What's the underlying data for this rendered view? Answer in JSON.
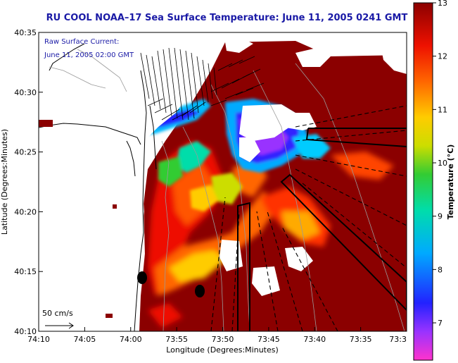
{
  "title": "RU COOL  NOAA–17  Sea Surface Temperature:  June 11, 2005 0241 GMT",
  "annotation": {
    "line1": "Raw Surface Current:",
    "line2": "June 11, 2005 02:00 GMT"
  },
  "scale": {
    "label": "50 cm/s"
  },
  "axes": {
    "xlabel": "Longitude (Degrees:Minutes)",
    "ylabel": "Latitude (Degrees:Minutes)",
    "x_ticks": [
      "74:10",
      "74:05",
      "74:00",
      "73:55",
      "73:50",
      "73:45",
      "73:40",
      "73:35",
      "73:3"
    ],
    "y_ticks": [
      "40:35",
      "40:30",
      "40:25",
      "40:20",
      "40:15",
      "40:10"
    ]
  },
  "colorbar": {
    "label": "Temperature (°C)",
    "ticks": [
      "13",
      "12",
      "11",
      "10",
      "9",
      "8",
      "7"
    ],
    "range": [
      6.3,
      13
    ]
  },
  "colors": {
    "land": "#ffffff",
    "title": "#1a1aa6",
    "sst_warm": "#8b0000",
    "cloud_mask": "#ffffff"
  }
}
